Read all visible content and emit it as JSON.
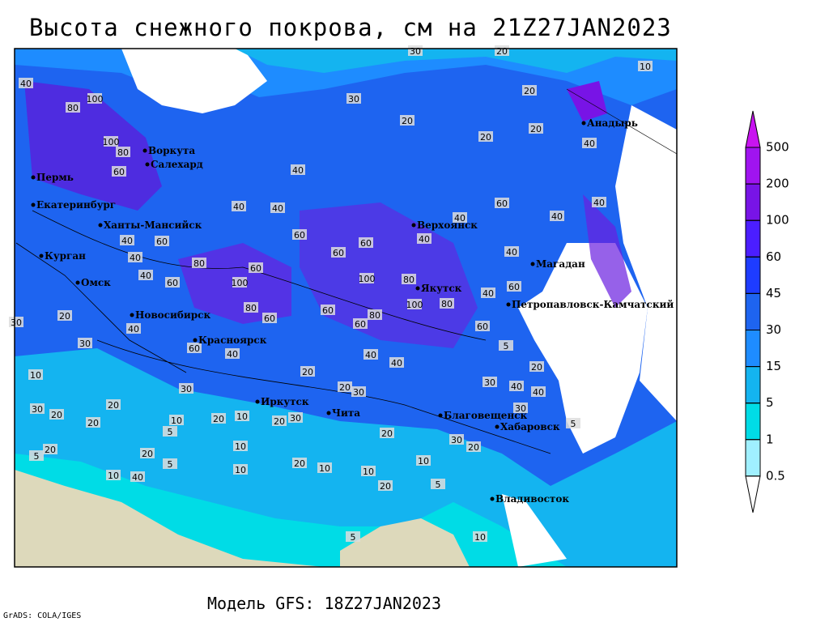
{
  "header": {
    "title": "Высота снежного покрова, см на 21Z27JAN2023"
  },
  "footer": {
    "model": "Модель GFS: 18Z27JAN2023",
    "credit": "GrADS: COLA/IGES"
  },
  "cities": [
    "Анадырь",
    "Верхоянск",
    "Магадан",
    "Якутск",
    "Петропавловск-Камчатский",
    "Ханты-Мансийск",
    "Екатеринбург",
    "Курган",
    "Омск",
    "Новосибирск",
    "Красноярск",
    "Иркутск",
    "Чита",
    "Благовещенск",
    "Хабаровск",
    "Владивосток",
    "Воркута",
    "Салехард",
    "Пермь"
  ],
  "contour_labels": [
    30,
    20,
    30,
    20,
    20,
    20,
    20,
    40,
    10,
    40,
    100,
    80,
    100,
    80,
    60,
    40,
    40,
    40,
    60,
    40,
    40,
    40,
    60,
    60,
    60,
    40,
    40,
    60,
    40,
    40,
    80,
    60,
    100,
    40,
    60,
    100,
    80,
    100,
    80,
    60,
    80,
    60,
    80,
    60,
    40,
    60,
    60,
    20,
    40,
    30,
    60,
    40,
    40,
    40,
    20,
    10,
    30,
    30,
    40,
    40,
    30,
    20,
    30,
    20,
    30,
    20,
    10,
    20,
    10,
    20,
    30,
    30,
    20,
    5,
    20,
    30,
    20,
    10,
    20,
    20,
    5,
    5,
    20,
    10,
    10,
    10,
    10,
    10,
    40,
    20,
    5,
    10,
    5,
    5,
    20,
    5
  ],
  "legend": {
    "levels": [
      500,
      200,
      100,
      60,
      45,
      30,
      15,
      5,
      1,
      0.5
    ],
    "colors": [
      "#c814f0",
      "#a014f0",
      "#7814e6",
      "#4b1eff",
      "#1e3cff",
      "#1e64f0",
      "#1e8cff",
      "#14b4f0",
      "#00dce6",
      "#a0f0ff",
      "#ffffff"
    ]
  }
}
